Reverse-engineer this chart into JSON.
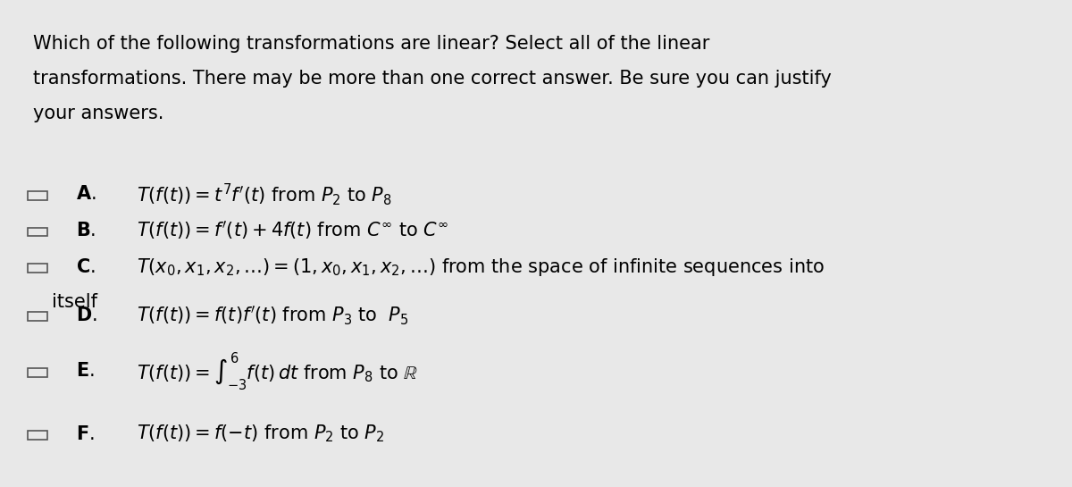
{
  "background_color": "#e8e8e8",
  "text_color": "#000000",
  "fig_width": 12.0,
  "fig_height": 5.45,
  "question_text": "Which of the following transformations are linear? Select all of the linear\ntransformations. There may be more than one correct answer. Be sure you can justify\nyour answers.",
  "options": [
    {
      "label": "A",
      "formula": "$T(f(t)) = t^7 f'(t)$ from $P_2$ to $P_8$"
    },
    {
      "label": "B",
      "formula": "$T(f(t)) = f'(t) + 4f(t)$ from $C^\\infty$ to $C^\\infty$"
    },
    {
      "label": "C",
      "formula": "$T(x_0, x_1, x_2,\\ldots) = (1, x_0, x_1, x_2,\\ldots)$ from the space of infinite sequences into\nitself"
    },
    {
      "label": "D",
      "formula": "$T(f(t)) = f(t)f'(t)$ from $P_3$ to  $P_5$"
    },
    {
      "label": "E",
      "formula": "$T(f(t)) = \\int_{-3}^{6} f(t)\\,dt$ from $P_8$ to $\\mathbb{R}$"
    },
    {
      "label": "F",
      "formula": "$T(f(t)) = f(-t)$ from $P_2$ to $P_2$"
    }
  ],
  "checkbox_size": 0.018,
  "question_fontsize": 15,
  "option_fontsize": 15,
  "label_fontsize": 15
}
